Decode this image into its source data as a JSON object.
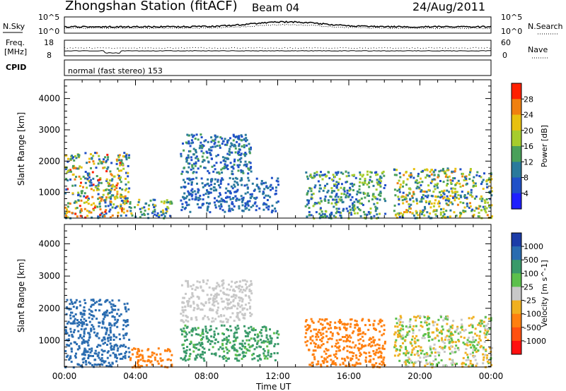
{
  "header": {
    "station": "Zhongshan Station (fitACF)",
    "beam": "Beam 04",
    "date": "24/Aug/2011"
  },
  "strips": {
    "nsky_label": "N.Sky",
    "nsky_ticks": [
      "10^5",
      "10^0"
    ],
    "nsearch_label": "N.Search",
    "nsearch_ticks": [
      "10^5",
      "10^0"
    ],
    "freq_label": "Freq.",
    "freq_unit": "[MHz]",
    "freq_ticks": [
      "18",
      "8"
    ],
    "nave_label": "Nave",
    "nave_ticks": [
      "60",
      "0"
    ],
    "cpid_label": "CPID",
    "cpid_text": "normal (fast stereo) 153"
  },
  "x_ticks": [
    "00:00",
    "04:00",
    "08:00",
    "12:00",
    "16:00",
    "20:00",
    "00:00"
  ],
  "x_label": "Time UT",
  "chart_data": [
    {
      "type": "heatmap",
      "parameter": "power",
      "ylabel": "Slant Range [km]",
      "ylim": [
        180,
        4600
      ],
      "y_ticks": [
        1000,
        2000,
        3000,
        4000
      ],
      "xlim": [
        0,
        24
      ],
      "colorbar": {
        "label": "Power [dB]",
        "ticks": [
          "4",
          "8",
          "12",
          "16",
          "20",
          "24",
          "28"
        ],
        "colors": [
          "#1f1fff",
          "#2050c8",
          "#2a7a9c",
          "#4aa05a",
          "#a6cc2c",
          "#e8c010",
          "#f08010",
          "#ff2000"
        ]
      },
      "regions": [
        {
          "t": [
            0.0,
            3.6
          ],
          "r": [
            200,
            2300
          ],
          "p": [
            4,
            30
          ]
        },
        {
          "t": [
            3.6,
            6.0
          ],
          "r": [
            200,
            800
          ],
          "p": [
            4,
            22
          ]
        },
        {
          "t": [
            6.5,
            10.5
          ],
          "r": [
            1600,
            2900
          ],
          "p": [
            4,
            14
          ]
        },
        {
          "t": [
            6.5,
            12.0
          ],
          "r": [
            400,
            1500
          ],
          "p": [
            4,
            12
          ]
        },
        {
          "t": [
            13.5,
            18.0
          ],
          "r": [
            200,
            1700
          ],
          "p": [
            4,
            20
          ]
        },
        {
          "t": [
            18.5,
            24.0
          ],
          "r": [
            200,
            1800
          ],
          "p": [
            4,
            26
          ]
        }
      ]
    },
    {
      "type": "heatmap",
      "parameter": "velocity",
      "ylabel": "Slant Range [km]",
      "ylim": [
        180,
        4600
      ],
      "y_ticks": [
        1000,
        2000,
        3000,
        4000
      ],
      "xlim": [
        0,
        24
      ],
      "colorbar": {
        "label": "Velocity [m s^-1]",
        "ticks": [
          "1000",
          "500",
          "100",
          "25",
          "-25",
          "-100",
          "-500",
          "-1000"
        ],
        "colors": [
          "#1c3ca8",
          "#2a6cb0",
          "#3a9a6a",
          "#5cc04c",
          "#c8c8c8",
          "#f0b020",
          "#ff8010",
          "#ff5010",
          "#ff1010"
        ]
      },
      "regions": [
        {
          "t": [
            0.0,
            3.6
          ],
          "r": [
            200,
            2300
          ],
          "v": [
            500,
            1000
          ]
        },
        {
          "t": [
            3.6,
            6.0
          ],
          "r": [
            200,
            800
          ],
          "v": [
            -500,
            -100
          ]
        },
        {
          "t": [
            6.5,
            10.5
          ],
          "r": [
            1600,
            2900
          ],
          "v": [
            -25,
            25
          ]
        },
        {
          "t": [
            6.5,
            12.0
          ],
          "r": [
            400,
            1500
          ],
          "v": [
            25,
            500
          ]
        },
        {
          "t": [
            13.5,
            18.0
          ],
          "r": [
            200,
            1700
          ],
          "v": [
            -500,
            -100
          ]
        },
        {
          "t": [
            18.5,
            24.0
          ],
          "r": [
            200,
            1800
          ],
          "v": [
            -100,
            100
          ]
        }
      ]
    }
  ]
}
